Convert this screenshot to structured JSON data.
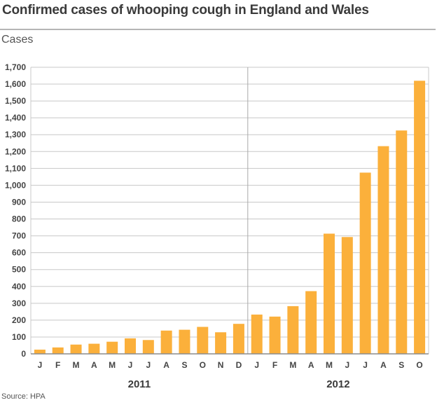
{
  "header": {
    "title": "Confirmed cases of whooping cough in England and Wales",
    "unit_label": "Cases"
  },
  "footer": {
    "source": "Source: HPA"
  },
  "colors": {
    "bar": "#fbb03b",
    "grid": "#c8c8c8",
    "axis": "#8c8c8c"
  },
  "chart_data": {
    "type": "bar",
    "title": "Confirmed cases of whooping cough in England and Wales",
    "ylabel": "Cases",
    "xlabel": "",
    "ylim": [
      0,
      1700
    ],
    "yticks": [
      0,
      100,
      200,
      300,
      400,
      500,
      600,
      700,
      800,
      900,
      1000,
      1100,
      1200,
      1300,
      1400,
      1500,
      1600,
      1700
    ],
    "ytick_labels": [
      "0",
      "100",
      "200",
      "300",
      "400",
      "500",
      "600",
      "700",
      "800",
      "900",
      "1,000",
      "1,100",
      "1,200",
      "1,300",
      "1,400",
      "1,500",
      "1,600",
      "1,700"
    ],
    "grid": true,
    "categories": [
      "J",
      "F",
      "M",
      "A",
      "M",
      "J",
      "J",
      "A",
      "S",
      "O",
      "N",
      "D",
      "J",
      "F",
      "M",
      "A",
      "M",
      "J",
      "J",
      "A",
      "S",
      "O"
    ],
    "groups": [
      {
        "label": "2011",
        "start": 0,
        "count": 12
      },
      {
        "label": "2012",
        "start": 12,
        "count": 10
      }
    ],
    "values": [
      25,
      38,
      55,
      60,
      72,
      92,
      82,
      138,
      143,
      160,
      128,
      178,
      233,
      221,
      283,
      372,
      713,
      693,
      1075,
      1232,
      1325,
      1620
    ]
  }
}
